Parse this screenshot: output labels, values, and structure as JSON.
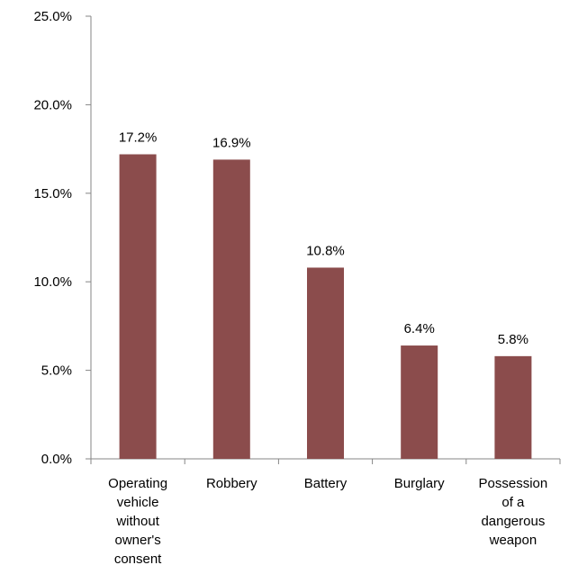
{
  "chart_data": {
    "type": "bar",
    "title": "",
    "xlabel": "",
    "ylabel": "",
    "categories": [
      "Operating vehicle without owner's consent",
      "Robbery",
      "Battery",
      "Burglary",
      "Possession of a dangerous weapon"
    ],
    "category_lines": [
      [
        "Operating",
        "vehicle",
        "without",
        "owner's",
        "consent"
      ],
      [
        "Robbery"
      ],
      [
        "Battery"
      ],
      [
        "Burglary"
      ],
      [
        "Possession",
        "of a",
        "dangerous",
        "weapon"
      ]
    ],
    "values": [
      17.2,
      16.9,
      10.8,
      6.4,
      5.8
    ],
    "data_labels": [
      "17.2%",
      "16.9%",
      "10.8%",
      "6.4%",
      "5.8%"
    ],
    "ylim": [
      0,
      25
    ],
    "yticks": [
      0,
      5,
      10,
      15,
      20,
      25
    ],
    "ytick_labels": [
      "0.0%",
      "5.0%",
      "10.0%",
      "15.0%",
      "20.0%",
      "25.0%"
    ],
    "grid": false,
    "legend": "none",
    "bar_color": "#8B4C4C"
  }
}
